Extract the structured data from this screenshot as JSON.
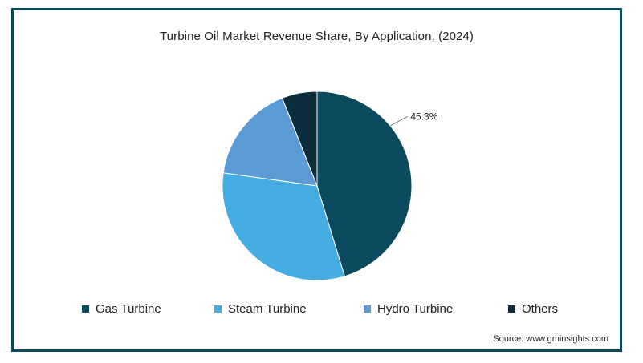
{
  "chart_data": {
    "type": "pie",
    "title": "Turbine Oil Market Revenue Share, By Application, (2024)",
    "categories": [
      "Gas Turbine",
      "Steam Turbine",
      "Hydro Turbine",
      "Others"
    ],
    "values": [
      45.3,
      31.9,
      16.8,
      6.0
    ],
    "colors": [
      "#0b4a5e",
      "#44ace0",
      "#5b9bd5",
      "#0b2d3c"
    ],
    "start_angle_deg": 0,
    "direction": "clockwise",
    "data_labels": [
      "45.3%",
      "",
      "",
      ""
    ],
    "legend_position": "bottom"
  },
  "source": "Source: www.gminsights.com"
}
